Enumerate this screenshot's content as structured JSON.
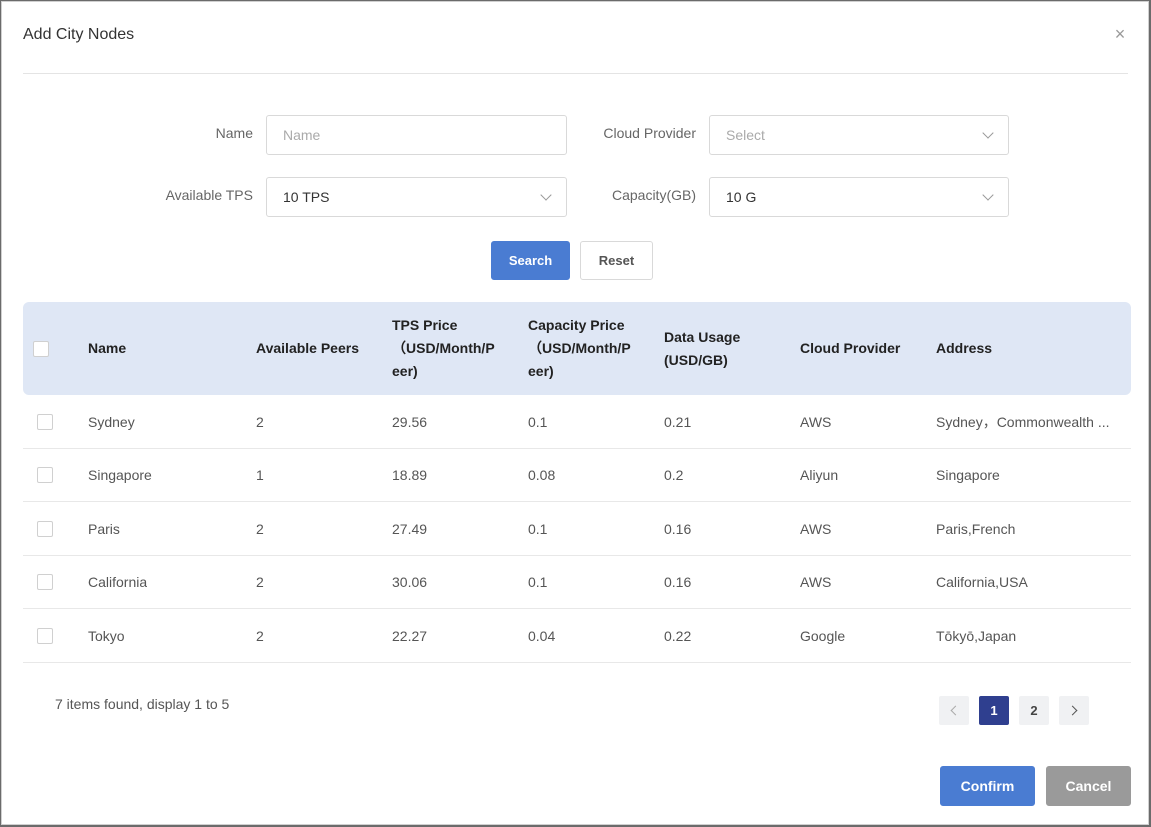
{
  "dialog": {
    "title": "Add City Nodes",
    "close_symbol": "×"
  },
  "form": {
    "name_label": "Name",
    "name_placeholder": "Name",
    "cloud_label": "Cloud Provider",
    "cloud_placeholder": "Select",
    "tps_label": "Available TPS",
    "tps_value": "10 TPS",
    "capacity_label": "Capacity(GB)",
    "capacity_value": "10 G",
    "search_label": "Search",
    "reset_label": "Reset"
  },
  "table": {
    "headers": {
      "name": "Name",
      "peers": "Available Peers",
      "tps_price_1": "TPS Price",
      "tps_price_2": "（USD/Month/P",
      "tps_price_3": "eer)",
      "cap_price_1": "Capacity Price",
      "cap_price_2": "（USD/Month/P",
      "cap_price_3": "eer)",
      "data_1": "Data Usage",
      "data_2": "(USD/GB)",
      "provider": "Cloud Provider",
      "address": "Address"
    },
    "rows": [
      {
        "name": "Sydney",
        "peers": "2",
        "tps": "29.56",
        "cap": "0.1",
        "data": "0.21",
        "provider": "AWS",
        "address": "Sydney，Commonwealth ..."
      },
      {
        "name": "Singapore",
        "peers": "1",
        "tps": "18.89",
        "cap": "0.08",
        "data": "0.2",
        "provider": "Aliyun",
        "address": "Singapore"
      },
      {
        "name": "Paris",
        "peers": "2",
        "tps": "27.49",
        "cap": "0.1",
        "data": "0.16",
        "provider": "AWS",
        "address": "Paris,French"
      },
      {
        "name": "California",
        "peers": "2",
        "tps": "30.06",
        "cap": "0.1",
        "data": "0.16",
        "provider": "AWS",
        "address": "California,USA"
      },
      {
        "name": "Tokyo",
        "peers": "2",
        "tps": "22.27",
        "cap": "0.04",
        "data": "0.22",
        "provider": "Google",
        "address": "Tōkyō,Japan"
      }
    ]
  },
  "pagination": {
    "summary": "7 items found, display 1 to 5",
    "pages": [
      "1",
      "2"
    ],
    "current_page": "1"
  },
  "actions": {
    "confirm_label": "Confirm",
    "cancel_label": "Cancel"
  },
  "colors": {
    "primary": "#4a7cd2",
    "header_bg": "#dfe7f5",
    "active_page": "#2f3f8f",
    "cancel": "#9a9a9a"
  }
}
